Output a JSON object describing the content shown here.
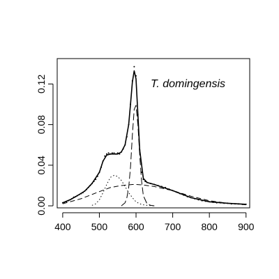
{
  "chart_data": {
    "type": "scatter",
    "title": "",
    "xlabel": "",
    "ylabel": "",
    "xlim": [
      385,
      910
    ],
    "ylim": [
      -0.002,
      0.145
    ],
    "x_ticks": [
      400,
      500,
      600,
      700,
      800,
      900
    ],
    "y_ticks": [
      0.0,
      0.04,
      0.08,
      0.12
    ],
    "y_tick_labels": [
      "0.00",
      "0.04",
      "0.08",
      "0.12"
    ],
    "annotation": "T. domingensis",
    "legend": "none",
    "grid": false,
    "series": [
      {
        "style": "points",
        "x": [
          400,
          405,
          410,
          415,
          420,
          425,
          430,
          435,
          440,
          445,
          450,
          455,
          460,
          465,
          470,
          475,
          480,
          485,
          490,
          495,
          500,
          505,
          510,
          515,
          520,
          525,
          530,
          535,
          540,
          545,
          550,
          555,
          560,
          565,
          570,
          575,
          580,
          585,
          590,
          595,
          600,
          605,
          610,
          615,
          620,
          625,
          630,
          640,
          650,
          660,
          670,
          680,
          690,
          700,
          710,
          720,
          730,
          740,
          750,
          760,
          770,
          780,
          790,
          800,
          810,
          820,
          830,
          840,
          850,
          860,
          870,
          880,
          890,
          900
        ],
        "y": [
          0.003,
          0.0035,
          0.004,
          0.005,
          0.006,
          0.007,
          0.0085,
          0.009,
          0.01,
          0.011,
          0.012,
          0.013,
          0.0145,
          0.016,
          0.018,
          0.02,
          0.022,
          0.024,
          0.026,
          0.029,
          0.033,
          0.038,
          0.044,
          0.049,
          0.051,
          0.052,
          0.051,
          0.052,
          0.052,
          0.051,
          0.052,
          0.051,
          0.053,
          0.056,
          0.06,
          0.068,
          0.08,
          0.1,
          0.123,
          0.137,
          0.128,
          0.09,
          0.055,
          0.033,
          0.026,
          0.024,
          0.023,
          0.022,
          0.021,
          0.02,
          0.019,
          0.018,
          0.0165,
          0.015,
          0.0135,
          0.012,
          0.0105,
          0.009,
          0.008,
          0.007,
          0.006,
          0.005,
          0.0045,
          0.004,
          0.0035,
          0.003,
          0.003,
          0.0025,
          0.0025,
          0.002,
          0.002,
          0.002,
          0.0015,
          0.0015
        ]
      },
      {
        "style": "solid",
        "x": [
          400,
          420,
          440,
          460,
          480,
          500,
          510,
          520,
          530,
          540,
          550,
          560,
          570,
          580,
          585,
          590,
          595,
          600,
          605,
          610,
          620,
          630,
          650,
          700,
          750,
          800,
          850,
          900
        ],
        "y": [
          0.003,
          0.006,
          0.01,
          0.0145,
          0.022,
          0.033,
          0.044,
          0.05,
          0.051,
          0.051,
          0.051,
          0.053,
          0.06,
          0.08,
          0.1,
          0.122,
          0.133,
          0.125,
          0.09,
          0.055,
          0.027,
          0.023,
          0.021,
          0.015,
          0.008,
          0.004,
          0.0025,
          0.0015
        ]
      },
      {
        "style": "dashed",
        "x": [
          400,
          450,
          500,
          530,
          560,
          590,
          600,
          620,
          650,
          700,
          750,
          800,
          850,
          900
        ],
        "y": [
          0.002,
          0.007,
          0.014,
          0.018,
          0.02,
          0.021,
          0.021,
          0.0205,
          0.019,
          0.015,
          0.0095,
          0.005,
          0.0025,
          0.001
        ]
      },
      {
        "style": "dotted",
        "x": [
          480,
          490,
          500,
          510,
          520,
          530,
          540,
          550,
          560,
          570,
          580,
          590,
          600,
          610,
          620,
          630,
          640,
          650
        ],
        "y": [
          0.0005,
          0.002,
          0.006,
          0.013,
          0.021,
          0.028,
          0.03,
          0.029,
          0.025,
          0.019,
          0.013,
          0.008,
          0.004,
          0.002,
          0.001,
          0.0005,
          0.0002,
          0.0001
        ]
      },
      {
        "style": "longdash",
        "x": [
          560,
          570,
          575,
          580,
          585,
          590,
          595,
          600,
          605,
          610,
          615,
          620,
          630,
          640,
          650
        ],
        "y": [
          0.0,
          0.003,
          0.008,
          0.018,
          0.038,
          0.07,
          0.095,
          0.099,
          0.08,
          0.05,
          0.025,
          0.01,
          0.002,
          0.0005,
          0.0
        ]
      }
    ]
  }
}
